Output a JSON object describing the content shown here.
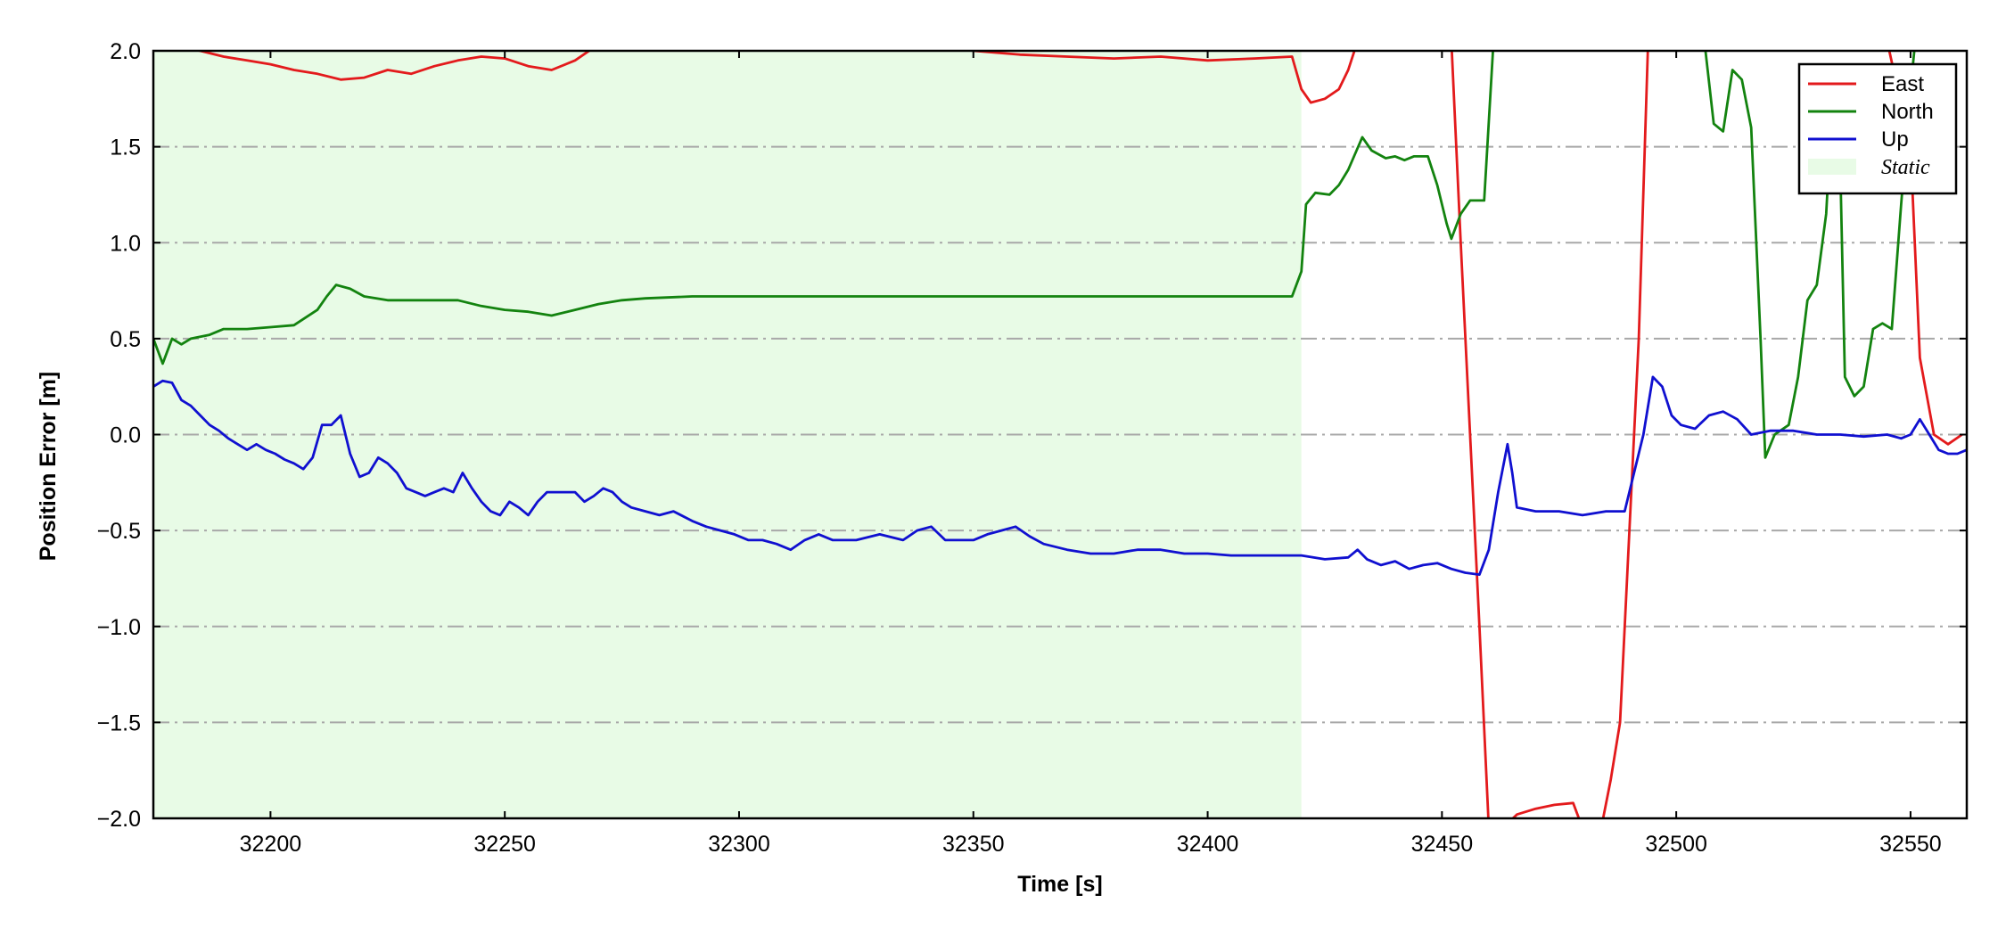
{
  "chart_data": {
    "type": "line",
    "title": "",
    "xlabel": "Time [s]",
    "ylabel": "Position Error [m]",
    "xlim": [
      32175,
      32562
    ],
    "ylim": [
      -2.0,
      2.0
    ],
    "xticks": [
      32200,
      32250,
      32300,
      32350,
      32400,
      32450,
      32500,
      32550
    ],
    "yticks": [
      -2.0,
      -1.5,
      -1.0,
      -0.5,
      0.0,
      0.5,
      1.0,
      1.5,
      2.0
    ],
    "ytick_labels": [
      "−2.0",
      "−1.5",
      "−1.0",
      "−0.5",
      "0.0",
      "0.5",
      "1.0",
      "1.5",
      "2.0"
    ],
    "xtick_labels": [
      "32200",
      "32250",
      "32300",
      "32350",
      "32400",
      "32450",
      "32500",
      "32550"
    ],
    "grid": "horizontal dash-dot",
    "legend_placement": "top-right",
    "static_region": {
      "label": "Static",
      "x_start": 32175,
      "x_end": 32420,
      "color": "#e8fbe6"
    },
    "series": [
      {
        "name": "East",
        "color": "#e31a1c",
        "points": [
          [
            32175,
            2.05
          ],
          [
            32185,
            2.0
          ],
          [
            32190,
            1.97
          ],
          [
            32195,
            1.95
          ],
          [
            32200,
            1.93
          ],
          [
            32205,
            1.9
          ],
          [
            32210,
            1.88
          ],
          [
            32215,
            1.85
          ],
          [
            32220,
            1.86
          ],
          [
            32225,
            1.9
          ],
          [
            32230,
            1.88
          ],
          [
            32235,
            1.92
          ],
          [
            32240,
            1.95
          ],
          [
            32245,
            1.97
          ],
          [
            32250,
            1.96
          ],
          [
            32255,
            1.92
          ],
          [
            32260,
            1.9
          ],
          [
            32265,
            1.95
          ],
          [
            32268,
            2.0
          ],
          [
            32272,
            2.05
          ],
          [
            32340,
            2.05
          ],
          [
            32350,
            2.0
          ],
          [
            32360,
            1.98
          ],
          [
            32370,
            1.97
          ],
          [
            32380,
            1.96
          ],
          [
            32390,
            1.97
          ],
          [
            32400,
            1.95
          ],
          [
            32410,
            1.96
          ],
          [
            32418,
            1.97
          ],
          [
            32420,
            1.8
          ],
          [
            32422,
            1.73
          ],
          [
            32425,
            1.75
          ],
          [
            32428,
            1.8
          ],
          [
            32430,
            1.9
          ],
          [
            32432,
            2.05
          ],
          [
            32452,
            2.05
          ],
          [
            32454,
            1.0
          ],
          [
            32456,
            0.0
          ],
          [
            32458,
            -1.0
          ],
          [
            32460,
            -2.05
          ],
          [
            32463,
            -2.05
          ],
          [
            32466,
            -1.98
          ],
          [
            32470,
            -1.95
          ],
          [
            32474,
            -1.93
          ],
          [
            32478,
            -1.92
          ],
          [
            32480,
            -2.05
          ],
          [
            32484,
            -2.05
          ],
          [
            32486,
            -1.8
          ],
          [
            32488,
            -1.5
          ],
          [
            32490,
            -0.5
          ],
          [
            32492,
            0.5
          ],
          [
            32494,
            2.05
          ],
          [
            32545,
            2.05
          ],
          [
            32550,
            1.5
          ],
          [
            32552,
            0.4
          ],
          [
            32555,
            0.0
          ],
          [
            32558,
            -0.05
          ],
          [
            32561,
            0.0
          ]
        ]
      },
      {
        "name": "North",
        "color": "#13830f",
        "points": [
          [
            32175,
            0.5
          ],
          [
            32177,
            0.37
          ],
          [
            32179,
            0.5
          ],
          [
            32181,
            0.47
          ],
          [
            32183,
            0.5
          ],
          [
            32187,
            0.52
          ],
          [
            32190,
            0.55
          ],
          [
            32195,
            0.55
          ],
          [
            32200,
            0.56
          ],
          [
            32205,
            0.57
          ],
          [
            32210,
            0.65
          ],
          [
            32212,
            0.72
          ],
          [
            32214,
            0.78
          ],
          [
            32217,
            0.76
          ],
          [
            32220,
            0.72
          ],
          [
            32225,
            0.7
          ],
          [
            32230,
            0.7
          ],
          [
            32235,
            0.7
          ],
          [
            32240,
            0.7
          ],
          [
            32245,
            0.67
          ],
          [
            32250,
            0.65
          ],
          [
            32255,
            0.64
          ],
          [
            32260,
            0.62
          ],
          [
            32265,
            0.65
          ],
          [
            32270,
            0.68
          ],
          [
            32275,
            0.7
          ],
          [
            32280,
            0.71
          ],
          [
            32290,
            0.72
          ],
          [
            32300,
            0.72
          ],
          [
            32310,
            0.72
          ],
          [
            32320,
            0.72
          ],
          [
            32330,
            0.72
          ],
          [
            32340,
            0.72
          ],
          [
            32350,
            0.72
          ],
          [
            32360,
            0.72
          ],
          [
            32370,
            0.72
          ],
          [
            32380,
            0.72
          ],
          [
            32390,
            0.72
          ],
          [
            32400,
            0.72
          ],
          [
            32410,
            0.72
          ],
          [
            32418,
            0.72
          ],
          [
            32420,
            0.85
          ],
          [
            32421,
            1.2
          ],
          [
            32423,
            1.26
          ],
          [
            32426,
            1.25
          ],
          [
            32428,
            1.3
          ],
          [
            32430,
            1.38
          ],
          [
            32433,
            1.55
          ],
          [
            32435,
            1.48
          ],
          [
            32438,
            1.44
          ],
          [
            32440,
            1.45
          ],
          [
            32442,
            1.43
          ],
          [
            32444,
            1.45
          ],
          [
            32447,
            1.45
          ],
          [
            32449,
            1.3
          ],
          [
            32451,
            1.1
          ],
          [
            32452,
            1.02
          ],
          [
            32454,
            1.15
          ],
          [
            32456,
            1.22
          ],
          [
            32459,
            1.22
          ],
          [
            32461,
            2.05
          ],
          [
            32506,
            2.05
          ],
          [
            32508,
            1.62
          ],
          [
            32510,
            1.58
          ],
          [
            32512,
            1.9
          ],
          [
            32514,
            1.85
          ],
          [
            32516,
            1.6
          ],
          [
            32518,
            0.5
          ],
          [
            32519,
            -0.12
          ],
          [
            32521,
            0.0
          ],
          [
            32524,
            0.05
          ],
          [
            32526,
            0.3
          ],
          [
            32528,
            0.7
          ],
          [
            32530,
            0.78
          ],
          [
            32532,
            1.15
          ],
          [
            32533,
            1.6
          ],
          [
            32535,
            1.4
          ],
          [
            32536,
            0.3
          ],
          [
            32538,
            0.2
          ],
          [
            32540,
            0.25
          ],
          [
            32542,
            0.55
          ],
          [
            32544,
            0.58
          ],
          [
            32546,
            0.55
          ],
          [
            32548,
            1.2
          ],
          [
            32550,
            1.8
          ],
          [
            32551,
            2.05
          ]
        ]
      },
      {
        "name": "Up",
        "color": "#1010d0",
        "points": [
          [
            32175,
            0.25
          ],
          [
            32177,
            0.28
          ],
          [
            32179,
            0.27
          ],
          [
            32181,
            0.18
          ],
          [
            32183,
            0.15
          ],
          [
            32185,
            0.1
          ],
          [
            32187,
            0.05
          ],
          [
            32189,
            0.02
          ],
          [
            32191,
            -0.02
          ],
          [
            32193,
            -0.05
          ],
          [
            32195,
            -0.08
          ],
          [
            32197,
            -0.05
          ],
          [
            32199,
            -0.08
          ],
          [
            32201,
            -0.1
          ],
          [
            32203,
            -0.13
          ],
          [
            32205,
            -0.15
          ],
          [
            32207,
            -0.18
          ],
          [
            32209,
            -0.12
          ],
          [
            32211,
            0.05
          ],
          [
            32213,
            0.05
          ],
          [
            32215,
            0.1
          ],
          [
            32217,
            -0.1
          ],
          [
            32219,
            -0.22
          ],
          [
            32221,
            -0.2
          ],
          [
            32223,
            -0.12
          ],
          [
            32225,
            -0.15
          ],
          [
            32227,
            -0.2
          ],
          [
            32229,
            -0.28
          ],
          [
            32231,
            -0.3
          ],
          [
            32233,
            -0.32
          ],
          [
            32235,
            -0.3
          ],
          [
            32237,
            -0.28
          ],
          [
            32239,
            -0.3
          ],
          [
            32241,
            -0.2
          ],
          [
            32243,
            -0.28
          ],
          [
            32245,
            -0.35
          ],
          [
            32247,
            -0.4
          ],
          [
            32249,
            -0.42
          ],
          [
            32251,
            -0.35
          ],
          [
            32253,
            -0.38
          ],
          [
            32255,
            -0.42
          ],
          [
            32257,
            -0.35
          ],
          [
            32259,
            -0.3
          ],
          [
            32261,
            -0.3
          ],
          [
            32263,
            -0.3
          ],
          [
            32265,
            -0.3
          ],
          [
            32267,
            -0.35
          ],
          [
            32269,
            -0.32
          ],
          [
            32271,
            -0.28
          ],
          [
            32273,
            -0.3
          ],
          [
            32275,
            -0.35
          ],
          [
            32277,
            -0.38
          ],
          [
            32280,
            -0.4
          ],
          [
            32283,
            -0.42
          ],
          [
            32286,
            -0.4
          ],
          [
            32290,
            -0.45
          ],
          [
            32293,
            -0.48
          ],
          [
            32296,
            -0.5
          ],
          [
            32299,
            -0.52
          ],
          [
            32302,
            -0.55
          ],
          [
            32305,
            -0.55
          ],
          [
            32308,
            -0.57
          ],
          [
            32311,
            -0.6
          ],
          [
            32314,
            -0.55
          ],
          [
            32317,
            -0.52
          ],
          [
            32320,
            -0.55
          ],
          [
            32325,
            -0.55
          ],
          [
            32330,
            -0.52
          ],
          [
            32335,
            -0.55
          ],
          [
            32338,
            -0.5
          ],
          [
            32341,
            -0.48
          ],
          [
            32344,
            -0.55
          ],
          [
            32347,
            -0.55
          ],
          [
            32350,
            -0.55
          ],
          [
            32353,
            -0.52
          ],
          [
            32356,
            -0.5
          ],
          [
            32359,
            -0.48
          ],
          [
            32362,
            -0.53
          ],
          [
            32365,
            -0.57
          ],
          [
            32370,
            -0.6
          ],
          [
            32375,
            -0.62
          ],
          [
            32380,
            -0.62
          ],
          [
            32385,
            -0.6
          ],
          [
            32390,
            -0.6
          ],
          [
            32395,
            -0.62
          ],
          [
            32400,
            -0.62
          ],
          [
            32405,
            -0.63
          ],
          [
            32410,
            -0.63
          ],
          [
            32415,
            -0.63
          ],
          [
            32420,
            -0.63
          ],
          [
            32425,
            -0.65
          ],
          [
            32430,
            -0.64
          ],
          [
            32432,
            -0.6
          ],
          [
            32434,
            -0.65
          ],
          [
            32437,
            -0.68
          ],
          [
            32440,
            -0.66
          ],
          [
            32443,
            -0.7
          ],
          [
            32446,
            -0.68
          ],
          [
            32449,
            -0.67
          ],
          [
            32452,
            -0.7
          ],
          [
            32455,
            -0.72
          ],
          [
            32458,
            -0.73
          ],
          [
            32460,
            -0.6
          ],
          [
            32462,
            -0.3
          ],
          [
            32464,
            -0.05
          ],
          [
            32465,
            -0.2
          ],
          [
            32466,
            -0.38
          ],
          [
            32470,
            -0.4
          ],
          [
            32475,
            -0.4
          ],
          [
            32480,
            -0.42
          ],
          [
            32485,
            -0.4
          ],
          [
            32489,
            -0.4
          ],
          [
            32491,
            -0.2
          ],
          [
            32493,
            0.0
          ],
          [
            32495,
            0.3
          ],
          [
            32497,
            0.25
          ],
          [
            32499,
            0.1
          ],
          [
            32501,
            0.05
          ],
          [
            32504,
            0.03
          ],
          [
            32507,
            0.1
          ],
          [
            32510,
            0.12
          ],
          [
            32513,
            0.08
          ],
          [
            32516,
            0.0
          ],
          [
            32520,
            0.02
          ],
          [
            32525,
            0.02
          ],
          [
            32530,
            0.0
          ],
          [
            32535,
            0.0
          ],
          [
            32540,
            -0.01
          ],
          [
            32545,
            0.0
          ],
          [
            32548,
            -0.02
          ],
          [
            32550,
            0.0
          ],
          [
            32552,
            0.08
          ],
          [
            32554,
            0.0
          ],
          [
            32556,
            -0.08
          ],
          [
            32558,
            -0.1
          ],
          [
            32560,
            -0.1
          ],
          [
            32562,
            -0.08
          ]
        ]
      }
    ]
  },
  "legend": {
    "items": [
      {
        "label": "East",
        "color": "#e31a1c"
      },
      {
        "label": "North",
        "color": "#13830f"
      },
      {
        "label": "Up",
        "color": "#1010d0"
      },
      {
        "label": "Static",
        "color": "#e8fbe6"
      }
    ]
  }
}
